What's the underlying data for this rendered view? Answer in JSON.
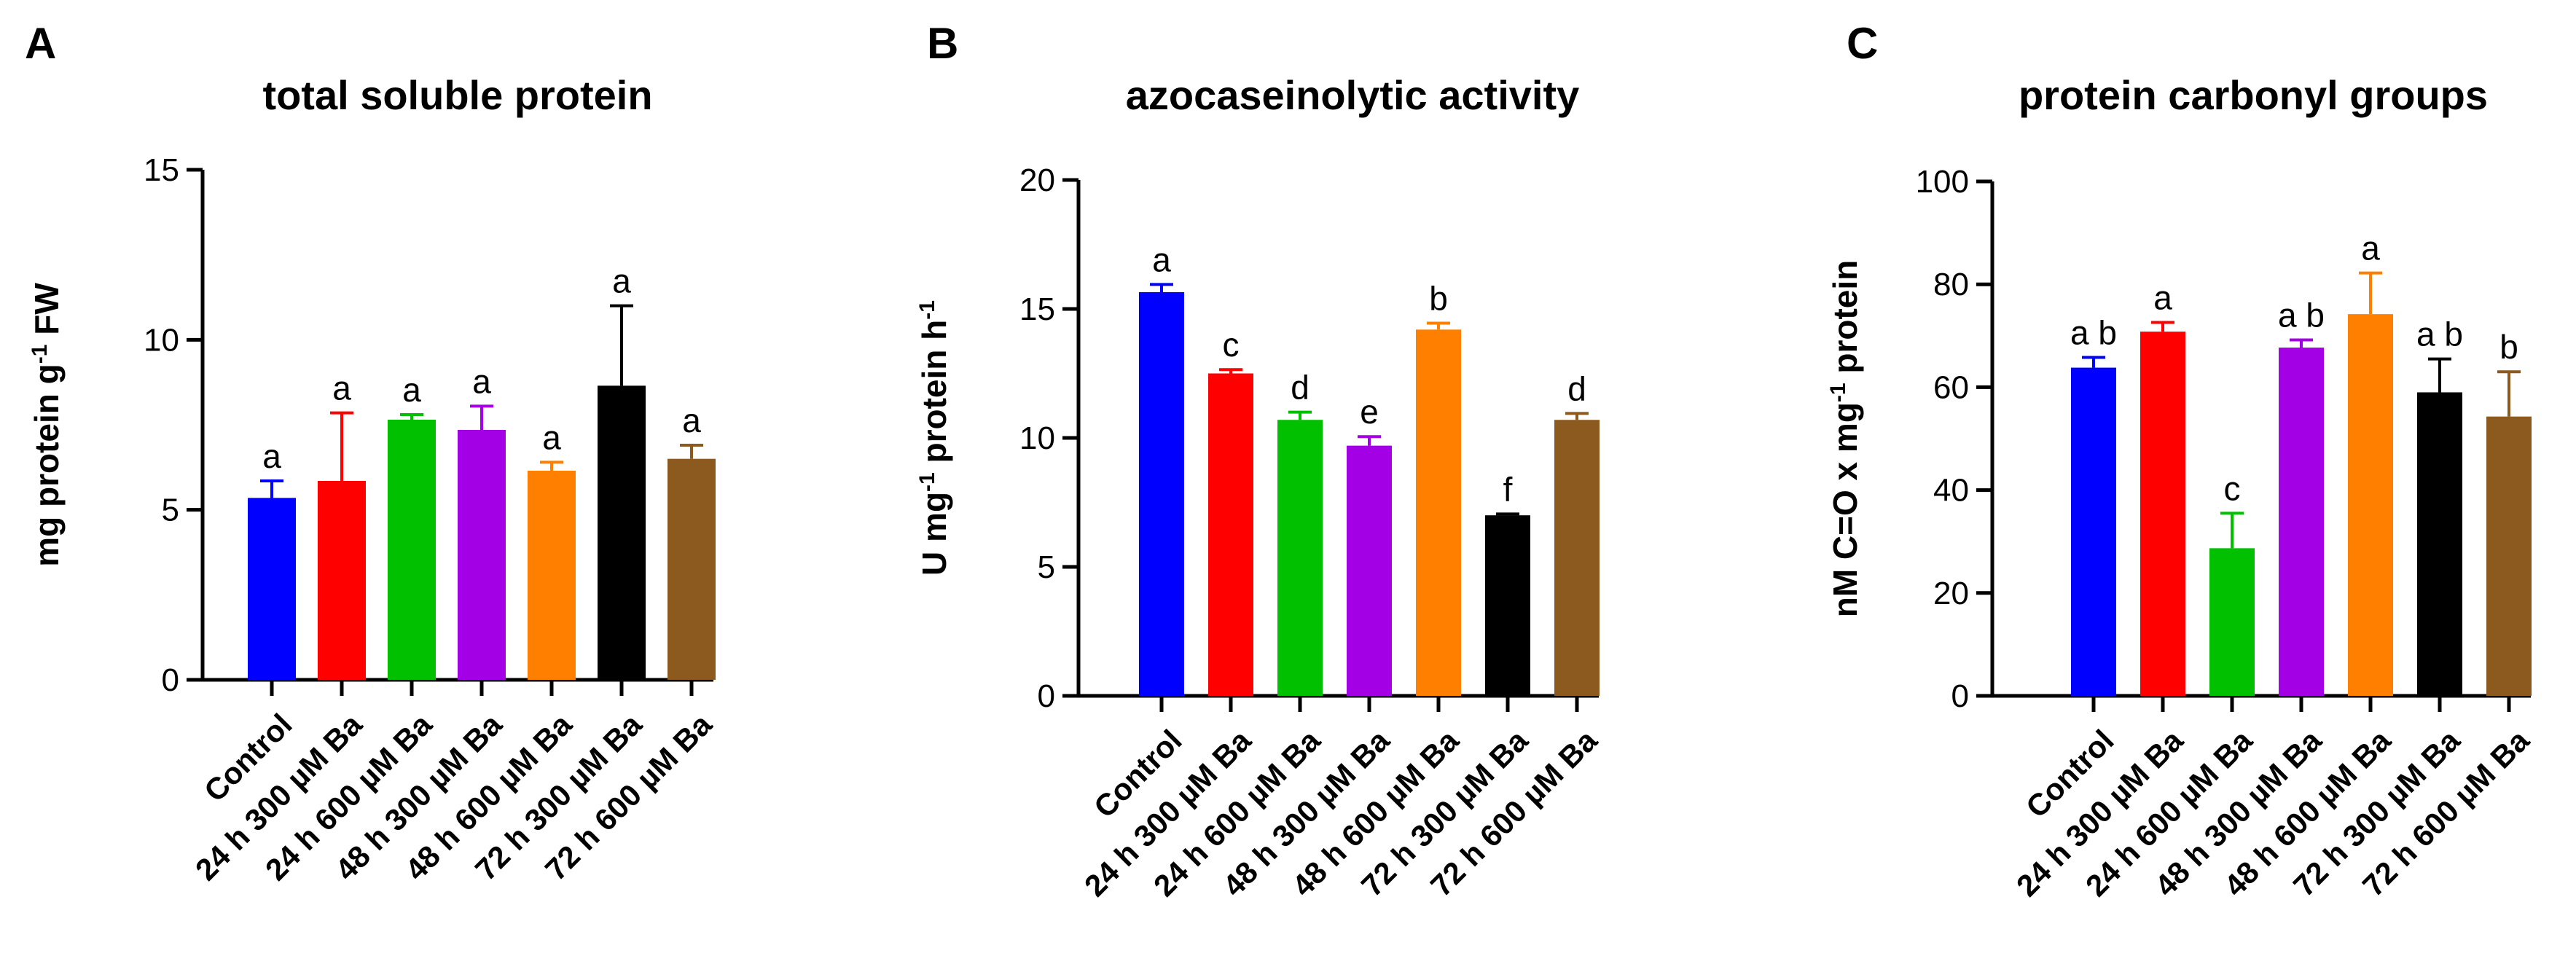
{
  "panels": [
    {
      "letter": "A"
    },
    {
      "letter": "B"
    },
    {
      "letter": "C"
    }
  ],
  "colors": {
    "Control": "#0000ff",
    "24 h 300 µM Ba": "#ff0000",
    "24 h 600 µM Ba": "#00c000",
    "48 h 300 µM Ba": "#a400e6",
    "48 h 600 µM Ba": "#ff8000",
    "72 h 300 µM Ba": "#000000",
    "72 h 600 µM Ba": "#8c5a1f"
  },
  "chart_data": [
    {
      "type": "bar",
      "title": "total soluble protein",
      "ylabel": "mg protein g⁻¹ FW",
      "ylabel_parts": [
        "mg protein g",
        "-1",
        " FW"
      ],
      "categories": [
        "Control",
        "24 h 300 µM Ba",
        "24 h 600 µM Ba",
        "48 h 300 µM Ba",
        "48 h 600 µM Ba",
        "72 h 300 µM Ba",
        "72 h 600 µM Ba"
      ],
      "values": [
        5.35,
        5.85,
        7.65,
        7.35,
        6.15,
        8.65,
        6.5
      ],
      "errors": [
        0.5,
        2.0,
        0.15,
        0.7,
        0.25,
        2.35,
        0.4
      ],
      "significance": [
        "a",
        "a",
        "a",
        "a",
        "a",
        "a",
        "a"
      ],
      "ylim": [
        0,
        15
      ],
      "yticks": [
        0,
        5,
        10,
        15
      ]
    },
    {
      "type": "bar",
      "title": "azocaseinolytic activity",
      "ylabel": "U mg⁻¹ protein h⁻¹",
      "ylabel_parts": [
        "U mg",
        "-1",
        " protein h",
        "-1"
      ],
      "categories": [
        "Control",
        "24 h 300 µM Ba",
        "24 h 600 µM Ba",
        "48 h 300 µM Ba",
        "48 h 600 µM Ba",
        "72 h 300 µM Ba",
        "72 h 600 µM Ba"
      ],
      "values": [
        15.65,
        12.5,
        10.7,
        9.7,
        14.2,
        7.0,
        10.7
      ],
      "errors": [
        0.3,
        0.15,
        0.3,
        0.35,
        0.25,
        0.05,
        0.25
      ],
      "significance": [
        "a",
        "c",
        "d",
        "e",
        "b",
        "f",
        "d"
      ],
      "ylim": [
        0,
        20
      ],
      "yticks": [
        0,
        5,
        10,
        15,
        20
      ]
    },
    {
      "type": "bar",
      "title": "protein carbonyl groups",
      "ylabel": "nM C=O x mg⁻¹ protein",
      "ylabel_parts": [
        "nM C=O x mg",
        "-1",
        " protein"
      ],
      "categories": [
        "Control",
        "24 h 300 µM Ba",
        "24 h 600 µM Ba",
        "48 h 300 µM Ba",
        "48 h 600 µM Ba",
        "72 h 300 µM Ba",
        "72 h 600 µM Ba"
      ],
      "values": [
        63.8,
        70.8,
        28.7,
        67.7,
        74.2,
        59.0,
        54.3
      ],
      "errors": [
        2.0,
        1.8,
        6.8,
        1.5,
        8.0,
        6.5,
        8.7
      ],
      "significance": [
        "a b",
        "a",
        "c",
        "a b",
        "a",
        "a b",
        "b"
      ],
      "ylim": [
        0,
        100
      ],
      "yticks": [
        0,
        20,
        40,
        60,
        80,
        100
      ]
    }
  ]
}
